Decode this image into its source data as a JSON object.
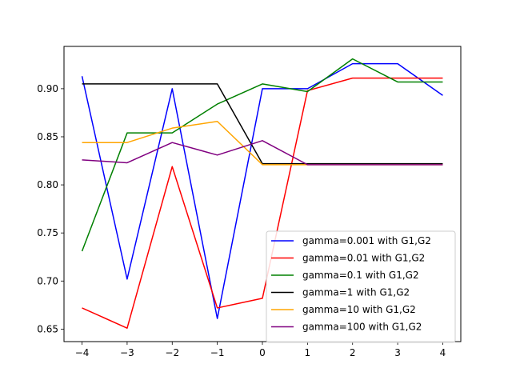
{
  "chart_data": {
    "type": "line",
    "x": [
      -4,
      -3,
      -2,
      -1,
      0,
      1,
      2,
      3,
      4
    ],
    "xticks": [
      "−4",
      "−3",
      "−2",
      "−1",
      "0",
      "1",
      "2",
      "3",
      "4"
    ],
    "xlim": [
      -4.4,
      4.4
    ],
    "yticks": [
      "0.65",
      "0.70",
      "0.75",
      "0.80",
      "0.85",
      "0.90"
    ],
    "ytick_values": [
      0.65,
      0.7,
      0.75,
      0.8,
      0.85,
      0.9
    ],
    "ylim": [
      0.637,
      0.944
    ],
    "grid": false,
    "legend_position": "lower right",
    "series": [
      {
        "name": "gamma=0.001 with G1,G2",
        "color": "#0000ff",
        "values": [
          0.913,
          0.702,
          0.9,
          0.661,
          0.9,
          0.9,
          0.926,
          0.926,
          0.893
        ]
      },
      {
        "name": "gamma=0.01 with G1,G2",
        "color": "#ff0000",
        "values": [
          0.672,
          0.651,
          0.819,
          0.672,
          0.682,
          0.898,
          0.911,
          0.911,
          0.911
        ]
      },
      {
        "name": "gamma=0.1 with G1,G2",
        "color": "#008000",
        "values": [
          0.731,
          0.854,
          0.854,
          0.884,
          0.905,
          0.897,
          0.931,
          0.907,
          0.907
        ]
      },
      {
        "name": "gamma=1 with G1,G2",
        "color": "#000000",
        "values": [
          0.905,
          0.905,
          0.905,
          0.905,
          0.822,
          0.822,
          0.822,
          0.822,
          0.822
        ]
      },
      {
        "name": "gamma=10 with G1,G2",
        "color": "#ffa500",
        "values": [
          0.844,
          0.844,
          0.859,
          0.866,
          0.821,
          0.821,
          0.821,
          0.821,
          0.821
        ]
      },
      {
        "name": "gamma=100 with G1,G2",
        "color": "#800080",
        "values": [
          0.826,
          0.823,
          0.844,
          0.831,
          0.846,
          0.821,
          0.821,
          0.821,
          0.821
        ]
      }
    ]
  }
}
